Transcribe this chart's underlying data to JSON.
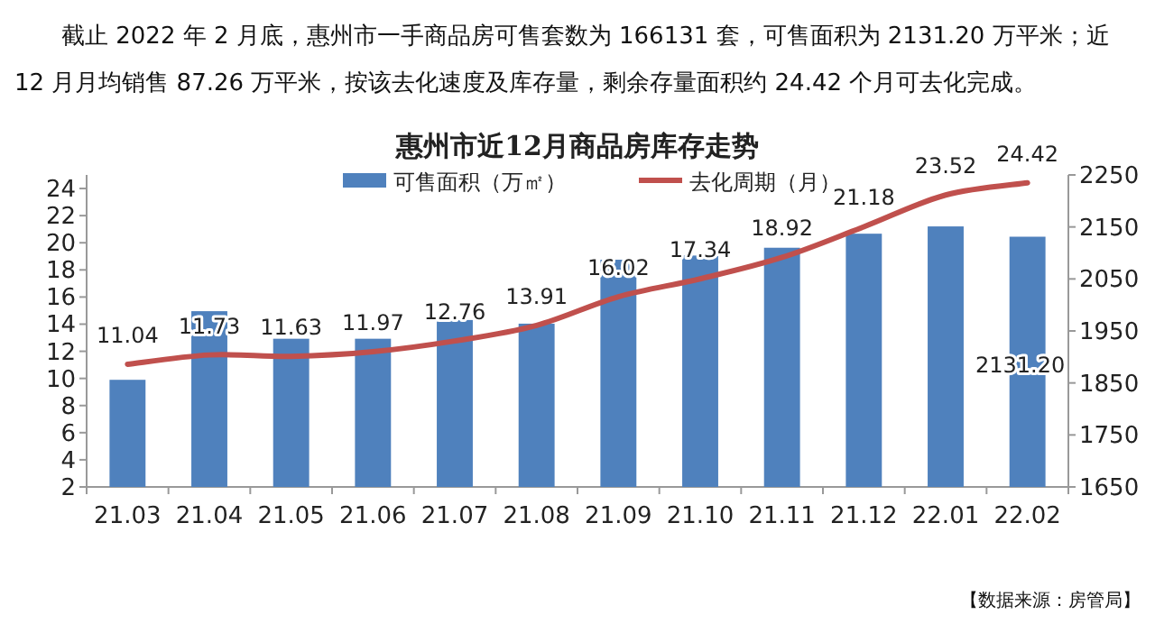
{
  "chart_data": {
    "type": "bar",
    "title": "惠州市近12月商品房库存走势",
    "annotations": [
      "截止 2022 年 2 月底，惠州市一手商品房可售套数为 166131 套，可售面积为 2131.20 万平米；近 12 月月均销售 87.26 万平米，按该去化速度及库存量，剩余存量面积约 24.42 个月可去化完成。",
      "【数据来源：房管局】"
    ],
    "categories": [
      "21.03",
      "21.04",
      "21.05",
      "21.06",
      "21.07",
      "21.08",
      "21.09",
      "21.10",
      "21.11",
      "21.12",
      "22.01",
      "22.02"
    ],
    "series": [
      {
        "name": "可售面积（万㎡）",
        "axis": "y2",
        "color": "#4f81bd",
        "values": [
          1856,
          1988,
          1935,
          1935,
          1971,
          1964,
          2087,
          2095,
          2110,
          2137,
          2151,
          2131.2
        ],
        "value_labels": [
          null,
          null,
          null,
          null,
          null,
          null,
          null,
          null,
          null,
          null,
          null,
          "2131.20"
        ]
      },
      {
        "name": "去化周期（月）",
        "type": "line",
        "axis": "y",
        "color": "#c0504d",
        "line_style": "solid",
        "marker": "none",
        "values": [
          11.04,
          11.73,
          11.63,
          11.97,
          12.76,
          13.91,
          16.02,
          17.34,
          18.92,
          21.18,
          23.52,
          24.42
        ],
        "value_labels": [
          "11.04",
          "11.73",
          "11.63",
          "11.97",
          "12.76",
          "13.91",
          "16.02",
          "17.34",
          "18.92",
          "21.18",
          "23.52",
          "24.42"
        ]
      }
    ],
    "ylim": [
      2,
      25
    ],
    "yticks": [
      2,
      4,
      6,
      8,
      10,
      12,
      14,
      16,
      18,
      20,
      22,
      24
    ],
    "y2lim": [
      1650,
      2250
    ],
    "y2ticks": [
      1650,
      1750,
      1850,
      1950,
      2050,
      2150,
      2250
    ],
    "legend": "top",
    "grid": false
  }
}
